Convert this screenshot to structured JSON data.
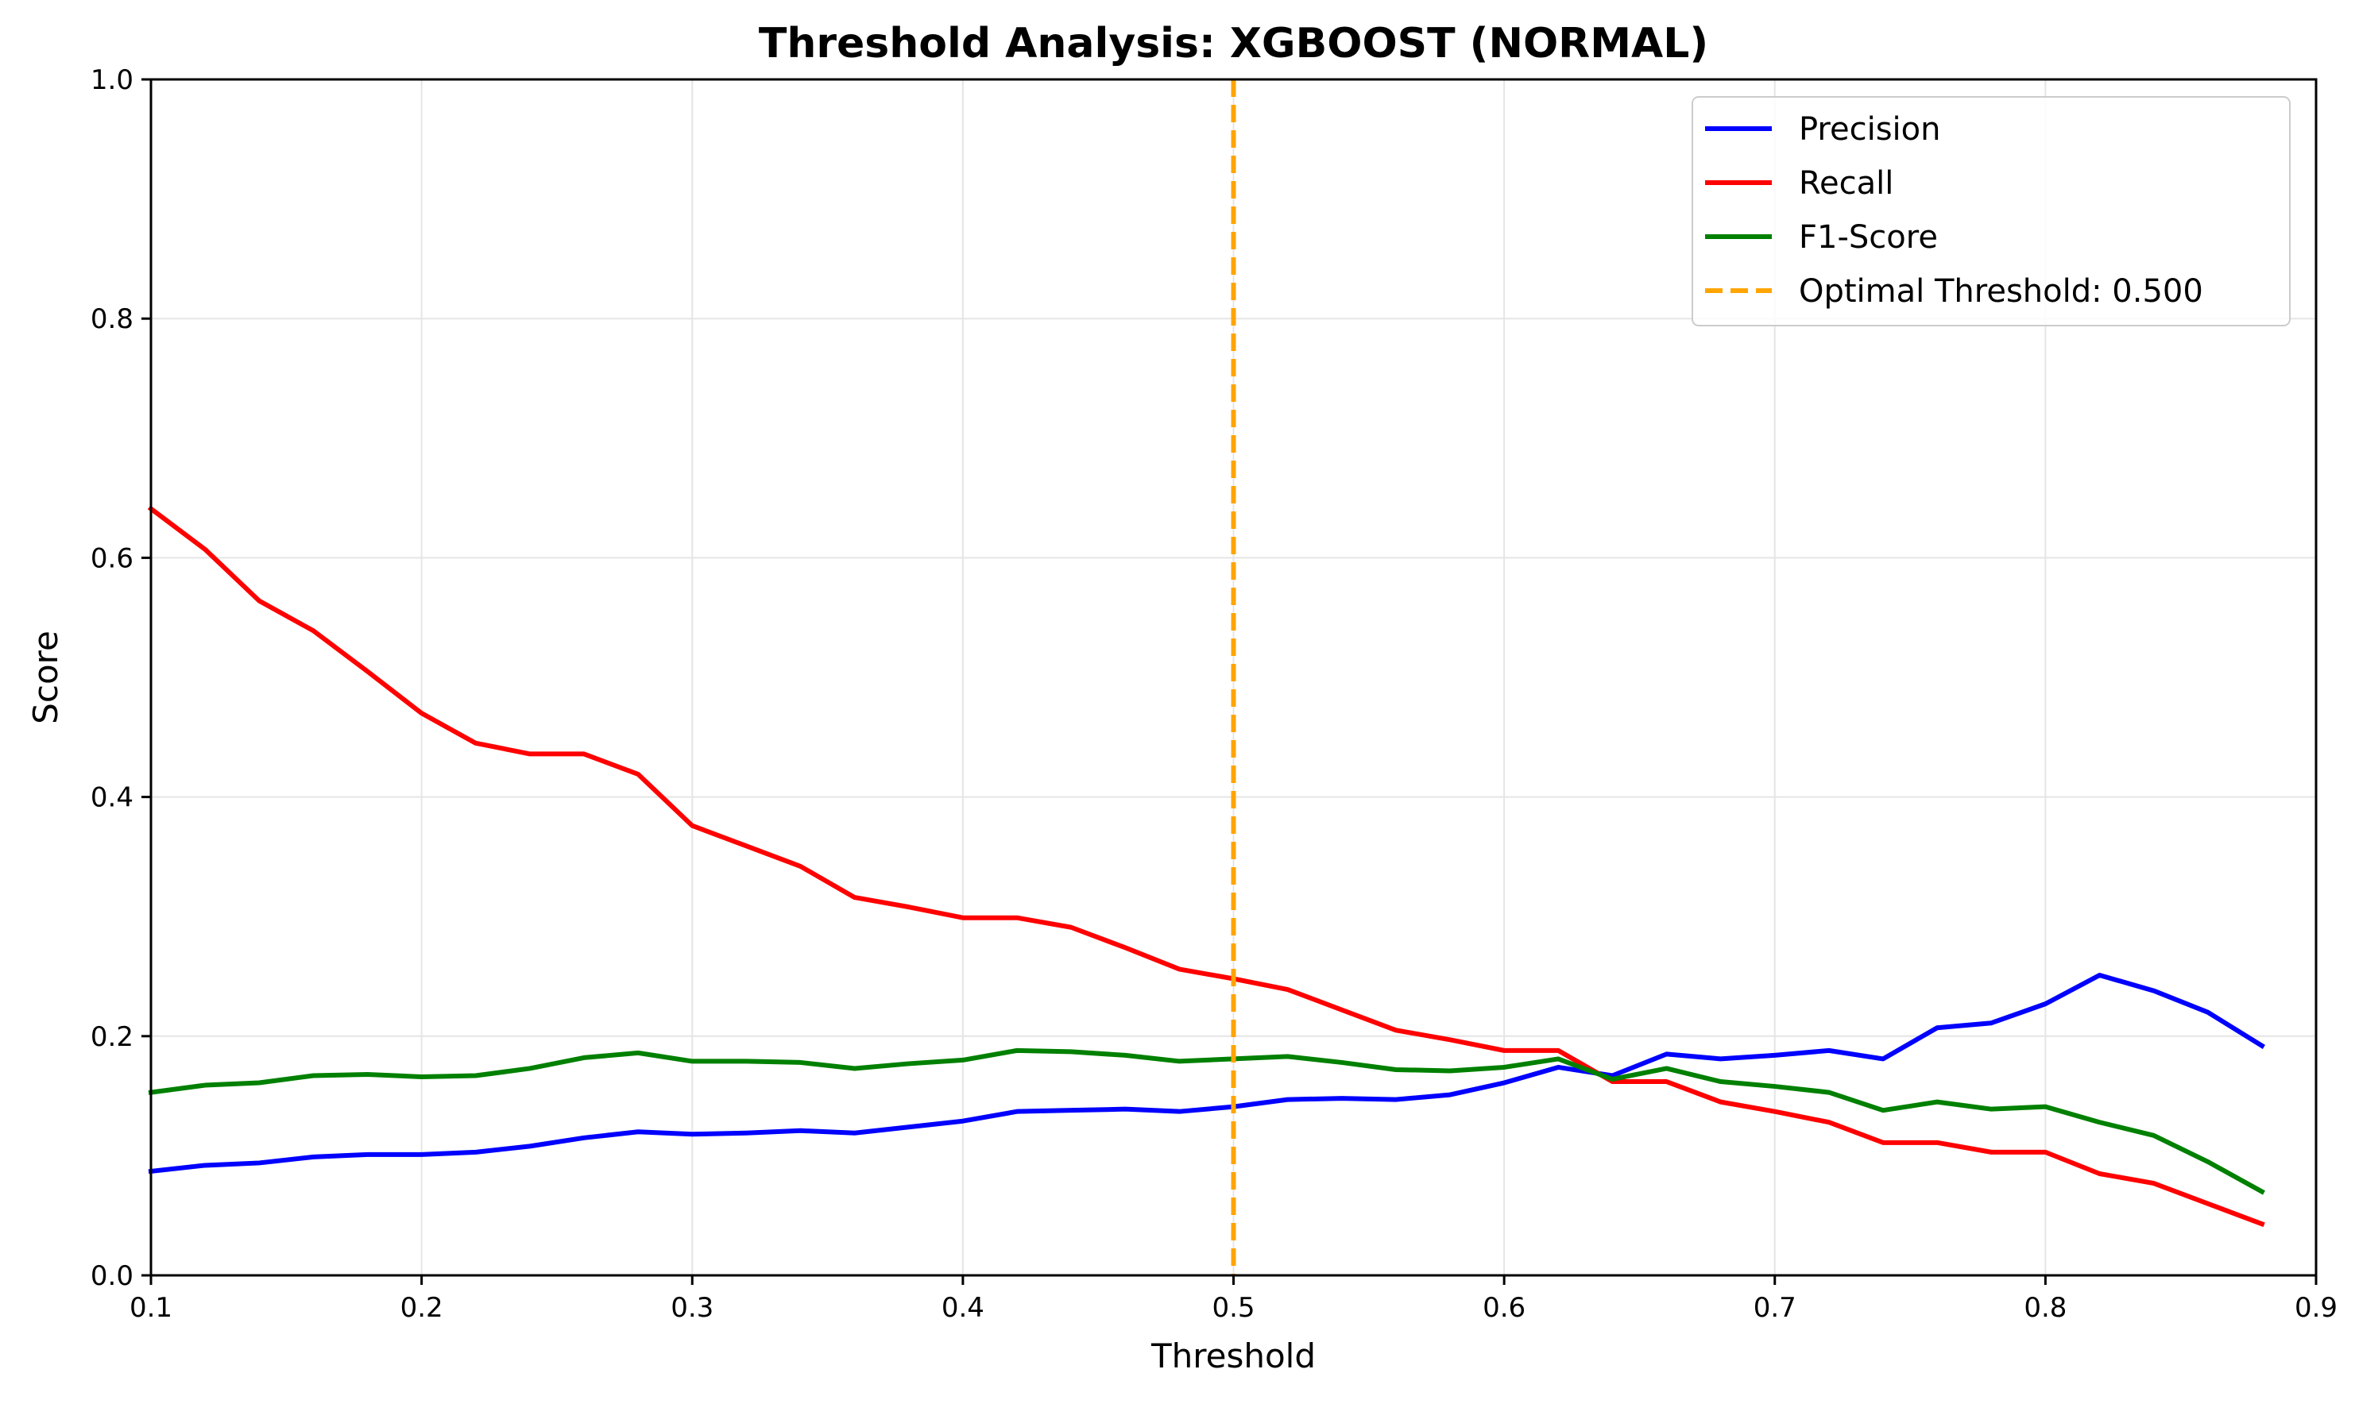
{
  "chart_data": {
    "type": "line",
    "title": "Threshold Analysis: XGBOOST (NORMAL)",
    "xlabel": "Threshold",
    "ylabel": "Score",
    "xlim": [
      0.1,
      0.9
    ],
    "ylim": [
      0.0,
      1.0
    ],
    "grid": true,
    "legend_position": "top-right",
    "x_ticks": [
      "0.1",
      "0.2",
      "0.3",
      "0.4",
      "0.5",
      "0.6",
      "0.7",
      "0.8",
      "0.9"
    ],
    "y_ticks": [
      "0.0",
      "0.2",
      "0.4",
      "0.6",
      "0.8",
      "1.0"
    ],
    "x": [
      0.1,
      0.12,
      0.14,
      0.16,
      0.18,
      0.2,
      0.22,
      0.24,
      0.26,
      0.28,
      0.3,
      0.32,
      0.34,
      0.36,
      0.38,
      0.4,
      0.42,
      0.44,
      0.46,
      0.48,
      0.5,
      0.52,
      0.54,
      0.56,
      0.58,
      0.6,
      0.62,
      0.64,
      0.66,
      0.68,
      0.7,
      0.72,
      0.74,
      0.76,
      0.78,
      0.8,
      0.82,
      0.84,
      0.86,
      0.88
    ],
    "series": [
      {
        "name": "Precision",
        "color": "#0000ff",
        "values": [
          0.087,
          0.092,
          0.094,
          0.099,
          0.101,
          0.101,
          0.103,
          0.108,
          0.115,
          0.12,
          0.118,
          0.119,
          0.121,
          0.119,
          0.124,
          0.129,
          0.137,
          0.138,
          0.139,
          0.137,
          0.141,
          0.147,
          0.148,
          0.147,
          0.151,
          0.161,
          0.174,
          0.167,
          0.185,
          0.181,
          0.184,
          0.188,
          0.181,
          0.207,
          0.211,
          0.227,
          0.251,
          0.238,
          0.22,
          0.192
        ]
      },
      {
        "name": "Recall",
        "color": "#ff0000",
        "values": [
          0.641,
          0.607,
          0.564,
          0.539,
          0.505,
          0.47,
          0.445,
          0.436,
          0.436,
          0.419,
          0.376,
          0.359,
          0.342,
          0.316,
          0.308,
          0.299,
          0.299,
          0.291,
          0.274,
          0.256,
          0.248,
          0.239,
          0.222,
          0.205,
          0.197,
          0.188,
          0.188,
          0.162,
          0.162,
          0.145,
          0.137,
          0.128,
          0.111,
          0.111,
          0.103,
          0.103,
          0.085,
          0.077,
          0.06,
          0.043
        ]
      },
      {
        "name": "F1-Score",
        "color": "#008000",
        "values": [
          0.153,
          0.159,
          0.161,
          0.167,
          0.168,
          0.166,
          0.167,
          0.173,
          0.182,
          0.186,
          0.179,
          0.179,
          0.178,
          0.173,
          0.177,
          0.18,
          0.188,
          0.187,
          0.184,
          0.179,
          0.181,
          0.183,
          0.178,
          0.172,
          0.171,
          0.174,
          0.181,
          0.164,
          0.173,
          0.162,
          0.158,
          0.153,
          0.138,
          0.145,
          0.139,
          0.141,
          0.128,
          0.117,
          0.095,
          0.07
        ]
      }
    ],
    "reference_line": {
      "name": "Optimal Threshold: 0.500",
      "color": "#ffa500",
      "x": 0.5,
      "style": "dashed"
    }
  }
}
